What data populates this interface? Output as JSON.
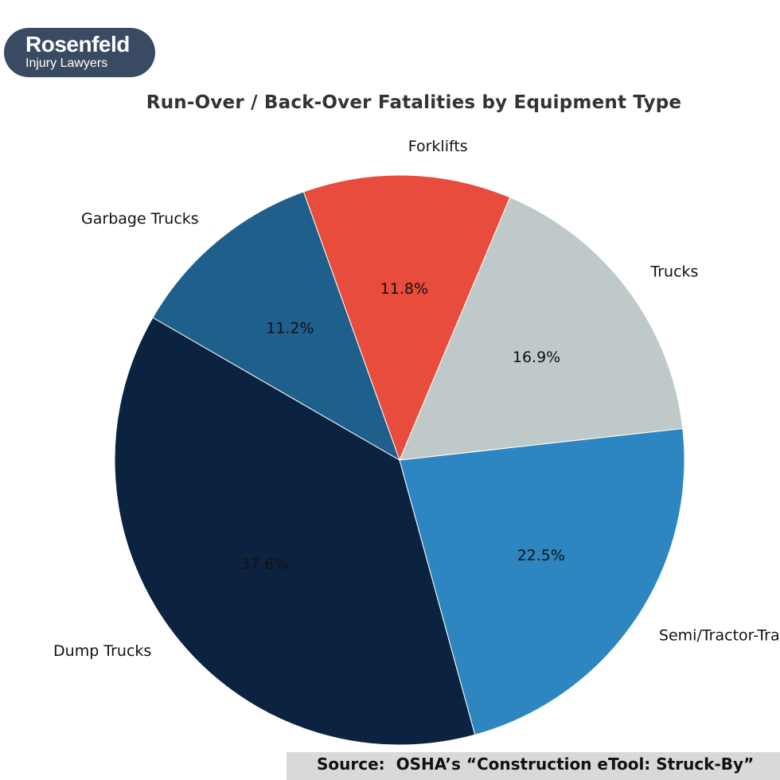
{
  "logo": {
    "name": "Rosenfeld",
    "subtitle": "Injury Lawyers"
  },
  "source_text": "Source:  OSHA’s “Construction eTool: Struck-By”",
  "chart_data": {
    "type": "pie",
    "title": "Run-Over / Back-Over Fatalities by Equipment Type",
    "slices": [
      {
        "label": "Dump Trucks",
        "value": 37.6,
        "display": "37.6%",
        "color": "#0b2341"
      },
      {
        "label": "Semi/Tractor-Trailers",
        "value": 22.5,
        "display": "22.5%",
        "color": "#2e86c1"
      },
      {
        "label": "Trucks",
        "value": 16.9,
        "display": "16.9%",
        "color": "#bfc9ca"
      },
      {
        "label": "Forklifts",
        "value": 11.8,
        "display": "11.8%",
        "color": "#e74c3c"
      },
      {
        "label": "Garbage Trucks",
        "value": 11.2,
        "display": "11.2%",
        "color": "#1f5f8b"
      }
    ]
  }
}
